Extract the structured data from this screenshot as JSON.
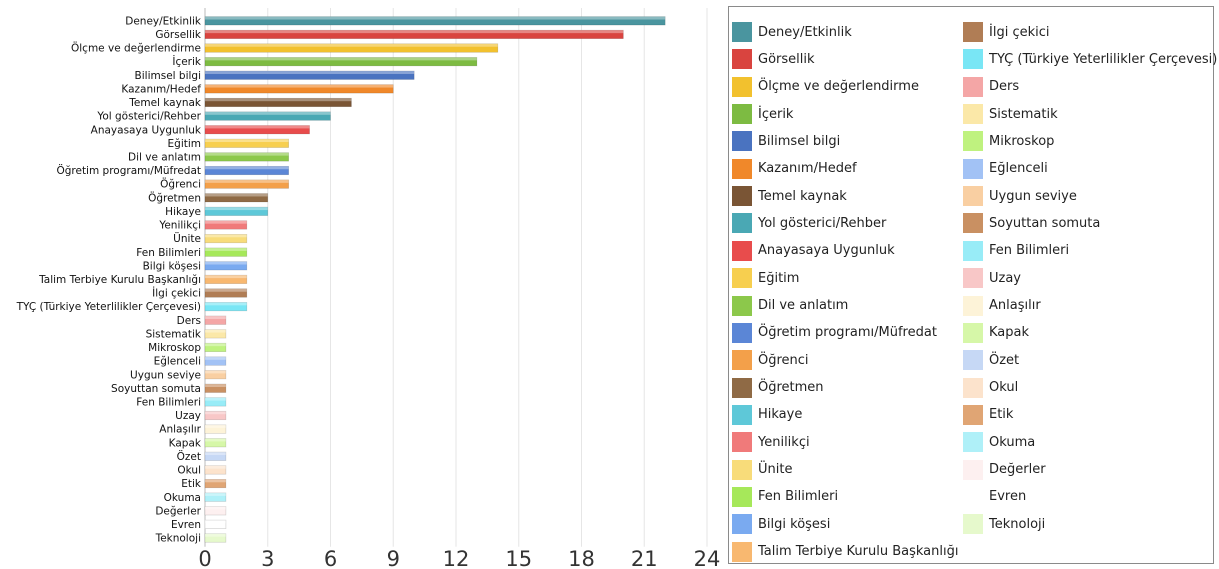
{
  "chart_data": {
    "type": "bar",
    "orientation": "horizontal",
    "categories": [
      "Deney/Etkinlik",
      "Görsellik",
      "Ölçme ve değerlendirme",
      "İçerik",
      "Bilimsel bilgi",
      "Kazanım/Hedef",
      "Temel kaynak",
      "Yol gösterici/Rehber",
      "Anayasaya Uygunluk",
      "Eğitim",
      "Dil ve anlatım",
      "Öğretim programı/Müfredat",
      "Öğrenci",
      "Öğretmen",
      "Hikaye",
      "Yenilikçi",
      "Ünite",
      "Fen Bilimleri",
      "Bilgi köşesi",
      "Talim Terbiye Kurulu Başkanlığı",
      "İlgi çekici",
      "TYÇ (Türkiye Yeterlilikler Çerçevesi)",
      "Ders",
      "Sistematik",
      "Mikroskop",
      "Eğlenceli",
      "Uygun seviye",
      "Soyuttan somuta",
      "Fen Bilimleri",
      "Uzay",
      "Anlaşılır",
      "Kapak",
      "Özet",
      "Okul",
      "Etik",
      "Okuma",
      "Değerler",
      "Evren",
      "Teknoloji"
    ],
    "values": [
      22,
      20,
      14,
      13,
      10,
      9,
      7,
      6,
      5,
      4,
      4,
      4,
      4,
      3,
      3,
      2,
      2,
      2,
      2,
      2,
      2,
      2,
      1,
      1,
      1,
      1,
      1,
      1,
      1,
      1,
      1,
      1,
      1,
      1,
      1,
      1,
      1,
      1,
      1
    ],
    "colors": [
      "#4a959f",
      "#d9443f",
      "#f2c12e",
      "#7dbb42",
      "#4a73c0",
      "#f0882a",
      "#7a5535",
      "#4aa8b4",
      "#e84c4c",
      "#f7cf4f",
      "#8cc84b",
      "#5b86d6",
      "#f3a04a",
      "#8f6a45",
      "#5ec8d8",
      "#f07a7a",
      "#f8dc7a",
      "#a6e85a",
      "#7aaaf0",
      "#f8b870",
      "#b07d55",
      "#79e6f5",
      "#f4a6a6",
      "#fbe8a8",
      "#bff27f",
      "#a2c2f5",
      "#f9cfa2",
      "#c99062",
      "#98ecf7",
      "#f8c7c7",
      "#fdf3d8",
      "#d6f7a8",
      "#c6d8f5",
      "#fce3cc",
      "#e0a574",
      "#aff0f8",
      "#fdf0f0",
      "#ffffff",
      "#e6f9cc"
    ],
    "xlim": [
      0,
      24
    ],
    "xticks": [
      0,
      3,
      6,
      9,
      12,
      15,
      18,
      21,
      24
    ],
    "grid": true,
    "legend_position": "right"
  },
  "legend": {
    "left": [
      "Deney/Etkinlik",
      "Görsellik",
      "Ölçme ve değerlendirme",
      "İçerik",
      "Bilimsel bilgi",
      "Kazanım/Hedef",
      "Temel kaynak",
      "Yol gösterici/Rehber",
      "Anayasaya Uygunluk",
      "Eğitim",
      "Dil ve anlatım",
      "Öğretim programı/Müfredat",
      "Öğrenci",
      "Öğretmen",
      "Hikaye",
      "Yenilikçi",
      "Ünite",
      "Fen Bilimleri",
      "Bilgi köşesi",
      "Talim Terbiye Kurulu Başkanlığı"
    ],
    "left_colors": [
      "#4a959f",
      "#d9443f",
      "#f2c12e",
      "#7dbb42",
      "#4a73c0",
      "#f0882a",
      "#7a5535",
      "#4aa8b4",
      "#e84c4c",
      "#f7cf4f",
      "#8cc84b",
      "#5b86d6",
      "#f3a04a",
      "#8f6a45",
      "#5ec8d8",
      "#f07a7a",
      "#f8dc7a",
      "#a6e85a",
      "#7aaaf0",
      "#f8b870"
    ],
    "right": [
      "İlgi çekici",
      "TYÇ (Türkiye Yeterlilikler Çerçevesi)",
      "Ders",
      "Sistematik",
      "Mikroskop",
      "Eğlenceli",
      "Uygun seviye",
      "Soyuttan somuta",
      "Fen Bilimleri",
      "Uzay",
      "Anlaşılır",
      "Kapak",
      "Özet",
      "Okul",
      "Etik",
      "Okuma",
      "Değerler",
      "Evren",
      "Teknoloji"
    ],
    "right_colors": [
      "#b07d55",
      "#79e6f5",
      "#f4a6a6",
      "#fbe8a8",
      "#bff27f",
      "#a2c2f5",
      "#f9cfa2",
      "#c99062",
      "#98ecf7",
      "#f8c7c7",
      "#fdf3d8",
      "#d6f7a8",
      "#c6d8f5",
      "#fce3cc",
      "#e0a574",
      "#aff0f8",
      "#fdf0f0",
      "#ffffff",
      "#e6f9cc"
    ]
  }
}
